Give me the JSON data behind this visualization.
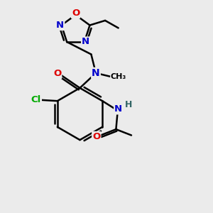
{
  "bg_color": "#ebebeb",
  "atom_colors": {
    "C": "#000000",
    "N": "#0000cc",
    "O": "#dd0000",
    "Cl": "#00aa00",
    "H": "#336666"
  },
  "bond_color": "#000000",
  "bond_width": 1.8
}
